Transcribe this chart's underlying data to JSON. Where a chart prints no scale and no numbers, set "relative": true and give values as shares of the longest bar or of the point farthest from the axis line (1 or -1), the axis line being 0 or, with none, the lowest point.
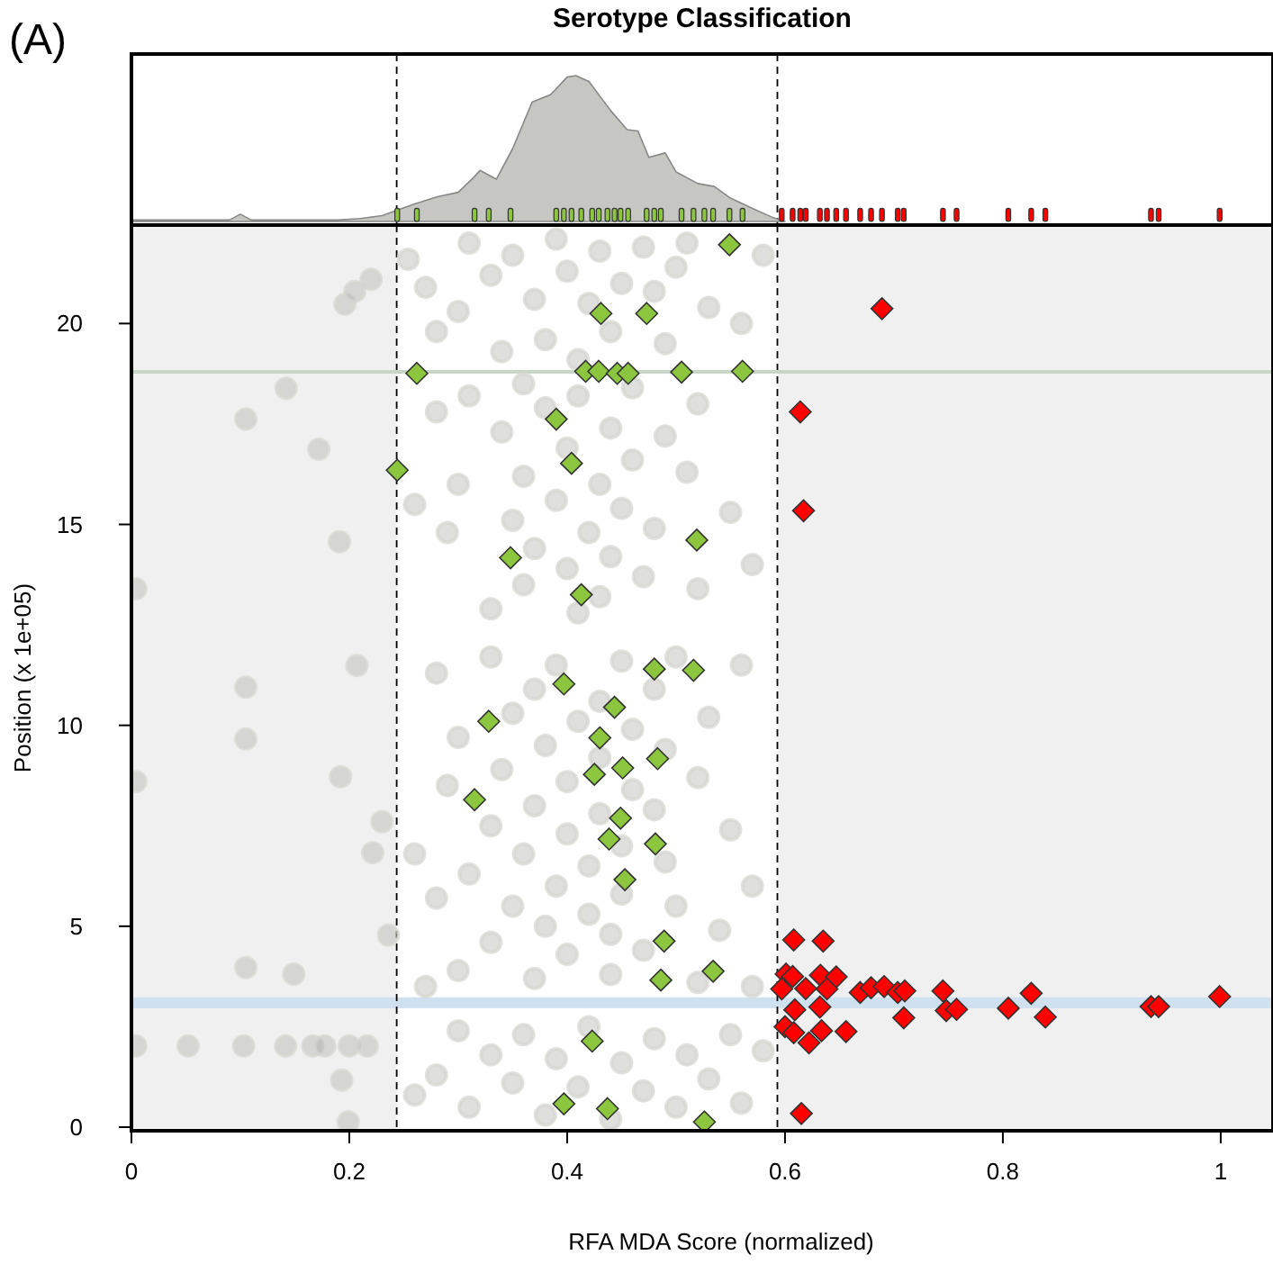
{
  "chart_data": [
    {
      "type": "area",
      "title": "Serotype Classification",
      "annotations": [
        "(A)"
      ],
      "relative": true,
      "xlim": [
        0,
        1.048
      ],
      "ref_lines": [
        {
          "axis": "x",
          "value": 0.2435,
          "color": "#000000",
          "line_style": "dashed"
        },
        {
          "axis": "x",
          "value": 0.593,
          "color": "#000000",
          "line_style": "dashed"
        }
      ],
      "series": [
        {
          "color": "#c6c6c2",
          "x": [
            0,
            0.09,
            0.1,
            0.11,
            0.19,
            0.21,
            0.23,
            0.241,
            0.26,
            0.281,
            0.3,
            0.314,
            0.32,
            0.335,
            0.35,
            0.368,
            0.385,
            0.4,
            0.408,
            0.42,
            0.44,
            0.455,
            0.465,
            0.475,
            0.49,
            0.5,
            0.52,
            0.535,
            0.55,
            0.57,
            0.588,
            0.6
          ],
          "values": [
            0.01,
            0.01,
            0.05,
            0.01,
            0.01,
            0.02,
            0.04,
            0.07,
            0.12,
            0.17,
            0.2,
            0.3,
            0.35,
            0.29,
            0.5,
            0.82,
            0.87,
            0.99,
            1,
            0.96,
            0.76,
            0.63,
            0.62,
            0.44,
            0.47,
            0.34,
            0.26,
            0.24,
            0.16,
            0.09,
            0.03,
            0
          ]
        },
        {
          "type": "bar",
          "color": "#8cc63e",
          "x": [
            0.244,
            0.262,
            0.315,
            0.328,
            0.348,
            0.39,
            0.397,
            0.404,
            0.413,
            0.423,
            0.429,
            0.437,
            0.4435,
            0.449,
            0.456,
            0.473,
            0.48,
            0.486,
            0.505,
            0.516,
            0.526,
            0.534,
            0.549,
            0.561
          ],
          "values": [
            0.09,
            0.09,
            0.09,
            0.09,
            0.09,
            0.09,
            0.09,
            0.09,
            0.09,
            0.09,
            0.09,
            0.09,
            0.09,
            0.09,
            0.09,
            0.09,
            0.09,
            0.09,
            0.09,
            0.09,
            0.09,
            0.09,
            0.09,
            0.09
          ]
        },
        {
          "type": "bar",
          "color": "#ff0000",
          "x": [
            0.597,
            0.607,
            0.614,
            0.619,
            0.632,
            0.6385,
            0.647,
            0.656,
            0.669,
            0.679,
            0.689,
            0.7035,
            0.709,
            0.745,
            0.7575,
            0.805,
            0.826,
            0.839,
            0.936,
            0.943,
            0.999
          ],
          "values": [
            0.09,
            0.09,
            0.09,
            0.09,
            0.09,
            0.09,
            0.09,
            0.09,
            0.09,
            0.09,
            0.09,
            0.09,
            0.09,
            0.09,
            0.09,
            0.09,
            0.09,
            0.09,
            0.09,
            0.09,
            0.09
          ]
        }
      ]
    },
    {
      "type": "scatter",
      "xlabel": "RFA MDA Score (normalized)",
      "ylabel": "Position (x 1e+05)",
      "xlim": [
        0,
        1.048
      ],
      "ylim": [
        0,
        22.45
      ],
      "xticks": [
        0,
        0.2,
        0.4,
        0.6,
        0.8,
        1
      ],
      "yticks": [
        0,
        5,
        10,
        15,
        20
      ],
      "bands": [
        {
          "axis": "x",
          "from": 0.2435,
          "to": 0.593,
          "color": "#ffffff"
        },
        {
          "axis": "y",
          "from": 2.96,
          "to": 3.23,
          "color": "#cfe0ee"
        }
      ],
      "ref_lines": [
        {
          "axis": "x",
          "value": 0.2435,
          "color": "#000000",
          "line_style": "dashed"
        },
        {
          "axis": "x",
          "value": 0.593,
          "color": "#000000",
          "line_style": "dashed"
        },
        {
          "axis": "y",
          "value": 18.8,
          "color": "#c8d6c8",
          "line_style": "solid"
        }
      ],
      "series": [
        {
          "marker": "circle",
          "color": "#a3a39e",
          "x": [
            0.142,
            0.105,
            0.172,
            0.191,
            0.004,
            0.207,
            0.196,
            0.205,
            0.22,
            0.254,
            0.105,
            0.105,
            0.192,
            0.004,
            0.23,
            0.2215,
            0.236,
            0.105,
            0.149,
            0.004,
            0.052,
            0.103,
            0.1415,
            0.1665,
            0.1775,
            0.2,
            0.2165,
            0.193,
            0.199,
            0.31,
            0.35,
            0.39,
            0.43,
            0.47,
            0.51,
            0.58,
            0.33,
            0.4,
            0.45,
            0.5,
            0.37,
            0.42,
            0.48,
            0.3,
            0.53,
            0.44,
            0.38,
            0.34,
            0.41,
            0.49,
            0.28,
            0.27,
            0.56,
            0.36,
            0.41,
            0.46,
            0.31,
            0.52,
            0.38,
            0.44,
            0.49,
            0.28,
            0.34,
            0.4,
            0.46,
            0.36,
            0.43,
            0.51,
            0.3,
            0.39,
            0.45,
            0.35,
            0.42,
            0.48,
            0.55,
            0.37,
            0.44,
            0.29,
            0.4,
            0.47,
            0.36,
            0.43,
            0.52,
            0.33,
            0.41,
            0.57,
            0.26,
            0.33,
            0.39,
            0.45,
            0.5,
            0.56,
            0.28,
            0.37,
            0.43,
            0.48,
            0.35,
            0.41,
            0.46,
            0.53,
            0.3,
            0.38,
            0.43,
            0.49,
            0.34,
            0.4,
            0.46,
            0.29,
            0.52,
            0.37,
            0.43,
            0.48,
            0.33,
            0.4,
            0.45,
            0.55,
            0.36,
            0.42,
            0.49,
            0.31,
            0.39,
            0.45,
            0.35,
            0.42,
            0.5,
            0.28,
            0.38,
            0.44,
            0.33,
            0.47,
            0.4,
            0.54,
            0.57,
            0.26,
            0.3,
            0.37,
            0.44,
            0.52,
            0.57,
            0.27,
            0.3,
            0.36,
            0.42,
            0.48,
            0.55,
            0.33,
            0.39,
            0.45,
            0.51,
            0.58,
            0.28,
            0.35,
            0.41,
            0.47,
            0.53,
            0.31,
            0.38,
            0.44,
            0.5,
            0.56,
            0.26
          ],
          "values": [
            18.39,
            17.62,
            16.87,
            14.57,
            13.4,
            11.49,
            20.48,
            20.8,
            21.1,
            21.6,
            10.95,
            9.66,
            8.72,
            8.6,
            7.6,
            6.83,
            4.78,
            3.97,
            3.81,
            2.02,
            2.02,
            2.02,
            2.02,
            2.02,
            2.02,
            2.02,
            2.02,
            1.17,
            0.13,
            22.0,
            21.7,
            22.1,
            21.8,
            21.9,
            22.0,
            21.7,
            21.2,
            21.3,
            21.0,
            21.4,
            20.6,
            20.5,
            20.8,
            20.3,
            20.4,
            19.8,
            19.6,
            19.3,
            19.1,
            19.5,
            19.8,
            20.9,
            20.0,
            18.5,
            18.2,
            18.4,
            18.2,
            18.0,
            17.9,
            17.4,
            17.2,
            17.8,
            17.3,
            16.9,
            16.6,
            16.2,
            16.0,
            16.3,
            16.0,
            15.6,
            15.4,
            15.1,
            14.8,
            14.9,
            15.3,
            14.4,
            14.2,
            14.8,
            13.9,
            13.7,
            13.5,
            13.2,
            13.4,
            12.9,
            12.8,
            14.0,
            15.5,
            11.7,
            11.5,
            11.6,
            11.7,
            11.5,
            11.3,
            10.9,
            10.6,
            10.9,
            10.3,
            10.1,
            9.9,
            10.2,
            9.7,
            9.5,
            9.2,
            9.4,
            8.9,
            8.6,
            8.4,
            8.5,
            8.7,
            8.0,
            7.8,
            7.9,
            7.5,
            7.3,
            7.0,
            7.4,
            6.8,
            6.5,
            6.6,
            6.3,
            6.0,
            5.8,
            5.5,
            5.3,
            5.5,
            5.7,
            5.0,
            4.8,
            4.6,
            4.4,
            4.3,
            4.9,
            6.0,
            6.8,
            3.9,
            3.7,
            3.8,
            3.6,
            3.5,
            3.5,
            2.4,
            2.3,
            2.5,
            2.2,
            2.3,
            1.8,
            1.7,
            1.6,
            1.8,
            1.9,
            1.3,
            1.1,
            1.0,
            0.9,
            1.2,
            0.5,
            0.3,
            0.2,
            0.5,
            0.6,
            0.8
          ]
        },
        {
          "marker": "diamond",
          "color": "#8cc63e",
          "x": [
            0.549,
            0.431,
            0.473,
            0.262,
            0.417,
            0.429,
            0.446,
            0.456,
            0.505,
            0.561,
            0.39,
            0.404,
            0.244,
            0.519,
            0.348,
            0.413,
            0.48,
            0.516,
            0.397,
            0.4435,
            0.328,
            0.43,
            0.483,
            0.425,
            0.451,
            0.315,
            0.449,
            0.4385,
            0.481,
            0.453,
            0.489,
            0.486,
            0.534,
            0.423,
            0.397,
            0.437,
            0.526
          ],
          "values": [
            21.96,
            20.25,
            20.25,
            18.76,
            18.81,
            18.81,
            18.76,
            18.76,
            18.79,
            18.81,
            17.62,
            16.52,
            16.35,
            14.61,
            14.17,
            13.25,
            11.4,
            11.37,
            11.03,
            10.45,
            10.1,
            9.69,
            9.17,
            8.78,
            8.94,
            8.15,
            7.69,
            7.17,
            7.05,
            6.16,
            4.63,
            3.66,
            3.88,
            2.14,
            0.58,
            0.46,
            0.13
          ]
        },
        {
          "marker": "diamond",
          "color": "#ff0000",
          "x": [
            0.689,
            0.614,
            0.617,
            0.608,
            0.635,
            0.601,
            0.607,
            0.6325,
            0.647,
            0.597,
            0.619,
            0.6385,
            0.669,
            0.679,
            0.691,
            0.7035,
            0.71,
            0.745,
            0.826,
            0.999,
            0.609,
            0.632,
            0.709,
            0.748,
            0.7575,
            0.805,
            0.839,
            0.936,
            0.943,
            0.6,
            0.608,
            0.6335,
            0.656,
            0.622,
            0.615
          ],
          "values": [
            20.37,
            17.8,
            15.34,
            4.66,
            4.63,
            3.81,
            3.75,
            3.78,
            3.74,
            3.44,
            3.45,
            3.44,
            3.35,
            3.47,
            3.5,
            3.35,
            3.39,
            3.39,
            3.33,
            3.25,
            2.92,
            2.99,
            2.72,
            2.9,
            2.93,
            2.96,
            2.74,
            3.0,
            3.0,
            2.5,
            2.35,
            2.4,
            2.38,
            2.1,
            0.34
          ]
        }
      ]
    }
  ]
}
